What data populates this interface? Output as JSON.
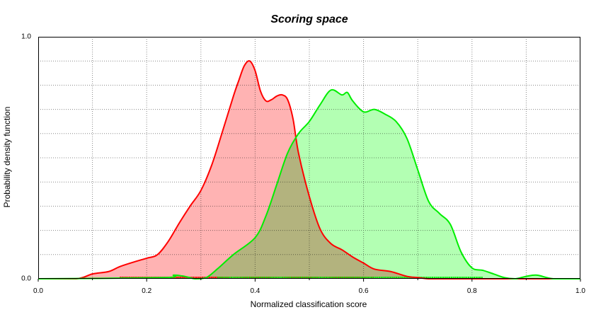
{
  "chart_data": {
    "type": "area",
    "title": "Scoring space",
    "xlabel": "Normalized classification score",
    "ylabel": "Probability density function",
    "xlim": [
      0.0,
      1.0
    ],
    "ylim": [
      0.0,
      1.0
    ],
    "x_ticks": [
      "0.0",
      "0.2",
      "0.4",
      "0.6",
      "0.8",
      "1.0"
    ],
    "y_ticks": [
      "0.0",
      "1.0"
    ],
    "grid": true,
    "series": [
      {
        "color": "#ff0000",
        "fill": "#ffb3b3",
        "x": [
          0.0,
          0.07,
          0.1,
          0.13,
          0.15,
          0.17,
          0.2,
          0.22,
          0.24,
          0.26,
          0.28,
          0.3,
          0.32,
          0.34,
          0.36,
          0.37,
          0.38,
          0.39,
          0.4,
          0.41,
          0.42,
          0.43,
          0.44,
          0.45,
          0.46,
          0.47,
          0.48,
          0.5,
          0.52,
          0.54,
          0.56,
          0.58,
          0.6,
          0.62,
          0.65,
          0.68,
          0.7,
          0.72,
          0.75,
          0.8,
          1.0
        ],
        "y": [
          0.0,
          0.0,
          0.02,
          0.03,
          0.05,
          0.065,
          0.085,
          0.1,
          0.155,
          0.23,
          0.3,
          0.365,
          0.47,
          0.61,
          0.755,
          0.82,
          0.88,
          0.9,
          0.86,
          0.775,
          0.735,
          0.74,
          0.755,
          0.76,
          0.74,
          0.66,
          0.52,
          0.34,
          0.205,
          0.145,
          0.12,
          0.09,
          0.065,
          0.04,
          0.03,
          0.01,
          0.005,
          0.0,
          0.0,
          0.0,
          0.0
        ]
      },
      {
        "color": "#00ee00",
        "fill": "#b3ffb3",
        "x": [
          0.0,
          0.23,
          0.25,
          0.27,
          0.29,
          0.31,
          0.33,
          0.36,
          0.4,
          0.42,
          0.44,
          0.46,
          0.48,
          0.5,
          0.52,
          0.54,
          0.56,
          0.57,
          0.58,
          0.6,
          0.62,
          0.64,
          0.66,
          0.68,
          0.7,
          0.72,
          0.74,
          0.76,
          0.78,
          0.8,
          0.82,
          0.84,
          0.86,
          0.88,
          0.9,
          0.92,
          0.95,
          1.0
        ],
        "y": [
          0.0,
          0.005,
          0.015,
          0.01,
          0.0,
          0.005,
          0.04,
          0.1,
          0.17,
          0.26,
          0.39,
          0.52,
          0.6,
          0.65,
          0.72,
          0.78,
          0.76,
          0.77,
          0.735,
          0.69,
          0.7,
          0.68,
          0.65,
          0.58,
          0.45,
          0.32,
          0.27,
          0.225,
          0.11,
          0.045,
          0.035,
          0.02,
          0.005,
          0.0,
          0.01,
          0.015,
          0.0,
          0.0
        ]
      }
    ]
  }
}
